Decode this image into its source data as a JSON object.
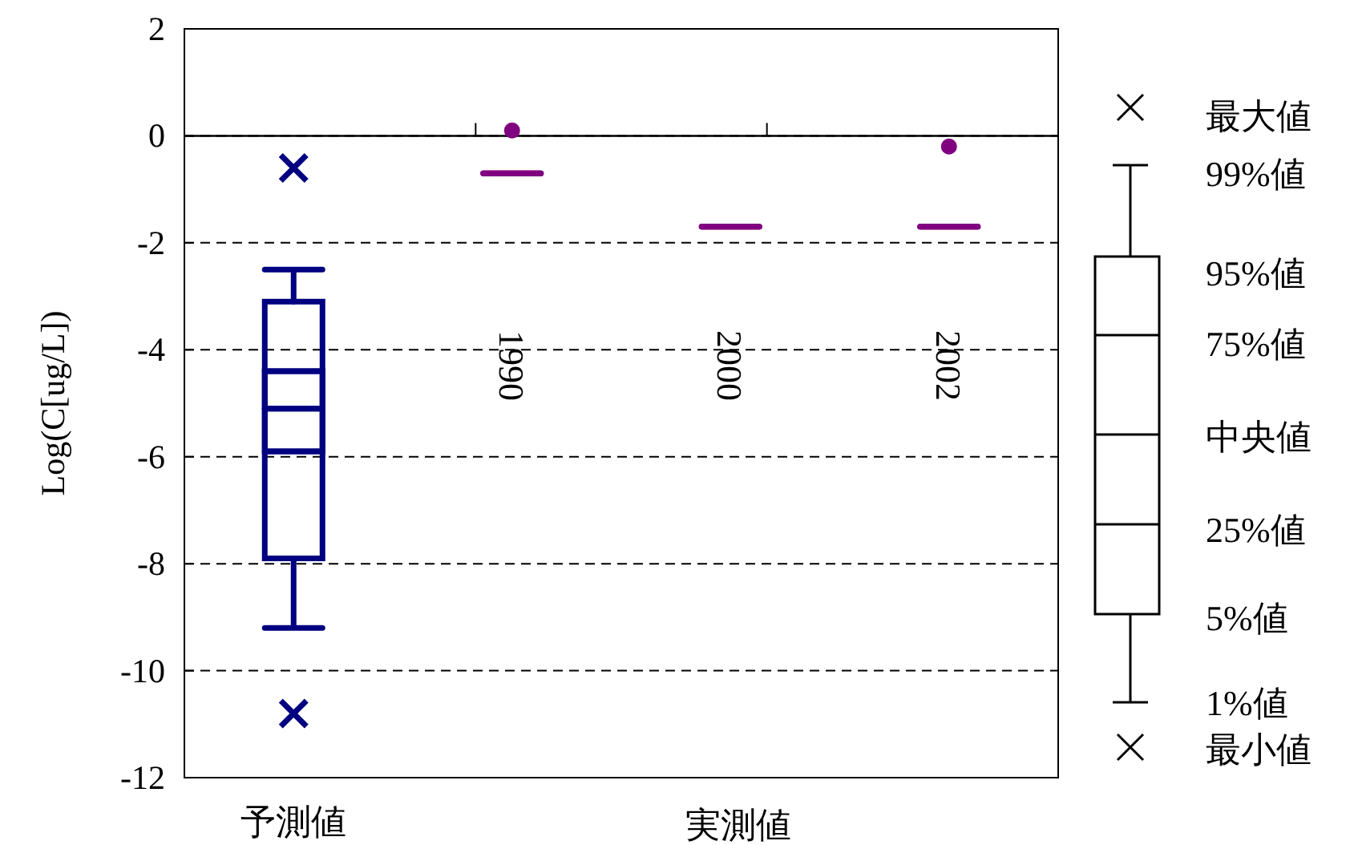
{
  "chart_data": {
    "type": "box",
    "ylabel": "Log(C[ug/L])",
    "categories": [
      "予測値",
      "1990",
      "2000",
      "2002"
    ],
    "ylim": [
      -12,
      2
    ],
    "yticks": [
      -12,
      -10,
      -8,
      -6,
      -4,
      -2,
      0,
      2
    ],
    "grid": "y",
    "line_style": "dashed",
    "ref_lines": [
      {
        "axis": "y",
        "value": 0
      }
    ],
    "series": [
      {
        "type": "box",
        "color": "#000080",
        "marker": "cross",
        "boxes": [
          {
            "low": -9.2,
            "q1": -7.9,
            "median": -5.1,
            "q3": -3.1,
            "high": -2.5,
            "outliers": [
              -0.6,
              -10.8
            ]
          },
          null,
          null,
          null
        ]
      },
      {
        "type": "box",
        "color": "#000080",
        "boxes": [
          {
            "low": -5.9,
            "q1": -5.9,
            "median": -5.1,
            "q3": -4.4,
            "high": -4.4
          },
          null,
          null,
          null
        ]
      },
      {
        "type": "box",
        "color": "#800080",
        "boxes": [
          null,
          {
            "low": -0.7,
            "q1": -0.7,
            "median": -0.7,
            "q3": -0.7,
            "high": -0.7
          },
          {
            "low": -1.7,
            "q1": -1.7,
            "median": -1.7,
            "q3": -1.7,
            "high": -1.7
          },
          {
            "low": -1.7,
            "q1": -1.7,
            "median": -1.7,
            "q3": -1.7,
            "high": -1.7
          }
        ]
      },
      {
        "type": "scatter",
        "marker": "circle",
        "color": "#800080",
        "values": [
          null,
          0.1,
          null,
          -0.2
        ]
      }
    ],
    "annotations": [
      "最大値",
      "99%値",
      "95%値",
      "75%値",
      "中央値",
      "25%値",
      "5%値",
      "1%値",
      "最小値",
      "実測値"
    ]
  }
}
